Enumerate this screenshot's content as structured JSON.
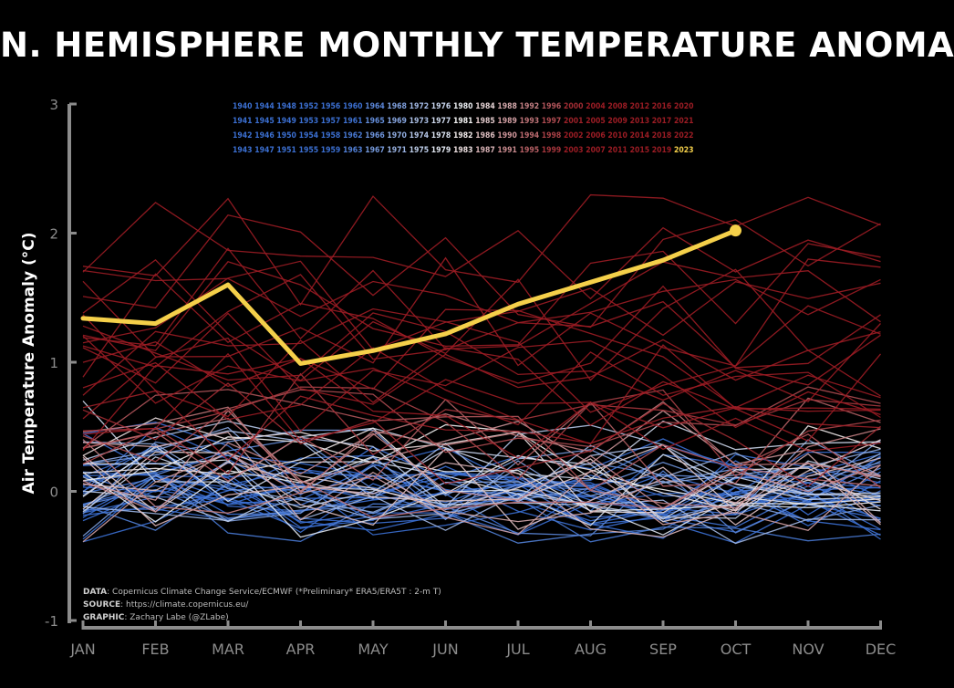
{
  "chart_data": {
    "type": "line",
    "title": "N. HEMISPHERE MONTHLY TEMPERATURE ANOMALY",
    "ylabel": "Air Temperature Anomaly (°C)",
    "xlabel": "",
    "categories": [
      "JAN",
      "FEB",
      "MAR",
      "APR",
      "MAY",
      "JUN",
      "JUL",
      "AUG",
      "SEP",
      "OCT",
      "NOV",
      "DEC"
    ],
    "ylim": [
      -1,
      3
    ],
    "yticks": [
      "-1",
      "0",
      "1",
      "2",
      "3"
    ],
    "highlight_series": {
      "name": "2023",
      "color": "#f5d04a",
      "values": [
        1.34,
        1.3,
        1.6,
        0.99,
        1.09,
        1.22,
        1.45,
        1.62,
        1.79,
        2.02
      ]
    },
    "background_series_years": "1940–2022",
    "legend": {
      "columns": [
        [
          "1940",
          "1941",
          "1942",
          "1943"
        ],
        [
          "1944",
          "1945",
          "1946",
          "1947"
        ],
        [
          "1948",
          "1949",
          "1950",
          "1951"
        ],
        [
          "1952",
          "1953",
          "1954",
          "1955"
        ],
        [
          "1956",
          "1957",
          "1958",
          "1959"
        ],
        [
          "1960",
          "1961",
          "1962",
          "1963"
        ],
        [
          "1964",
          "1965",
          "1966",
          "1967"
        ],
        [
          "1968",
          "1969",
          "1970",
          "1971"
        ],
        [
          "1972",
          "1973",
          "1974",
          "1975"
        ],
        [
          "1976",
          "1977",
          "1978",
          "1979"
        ],
        [
          "1980",
          "1981",
          "1982",
          "1983"
        ],
        [
          "1984",
          "1985",
          "1986",
          "1987"
        ],
        [
          "1988",
          "1989",
          "1990",
          "1991"
        ],
        [
          "1992",
          "1993",
          "1994",
          "1995"
        ],
        [
          "1996",
          "1997",
          "1998",
          "1999"
        ],
        [
          "2000",
          "2001",
          "2002",
          "2003"
        ],
        [
          "2004",
          "2005",
          "2006",
          "2007"
        ],
        [
          "2008",
          "2009",
          "2010",
          "2011"
        ],
        [
          "2012",
          "2013",
          "2014",
          "2015"
        ],
        [
          "2016",
          "2017",
          "2018",
          "2019"
        ],
        [
          "2020",
          "2021",
          "2022",
          "2023"
        ]
      ]
    },
    "colors": {
      "cold": "#3b6fd1",
      "neutral": "#f2f2f2",
      "warm": "#9b1c24",
      "highlight": "#f5d04a",
      "axis": "#8c8c8c"
    }
  },
  "credits": {
    "data_label": "DATA",
    "data_text": ": Copernicus Climate Change Service/ECMWF (*Preliminary* ERA5/ERA5T : 2-m T)",
    "source_label": "SOURCE",
    "source_text": ": https://climate.copernicus.eu/",
    "graphic_label": "GRAPHIC",
    "graphic_text": ": Zachary Labe (@ZLabe)"
  }
}
